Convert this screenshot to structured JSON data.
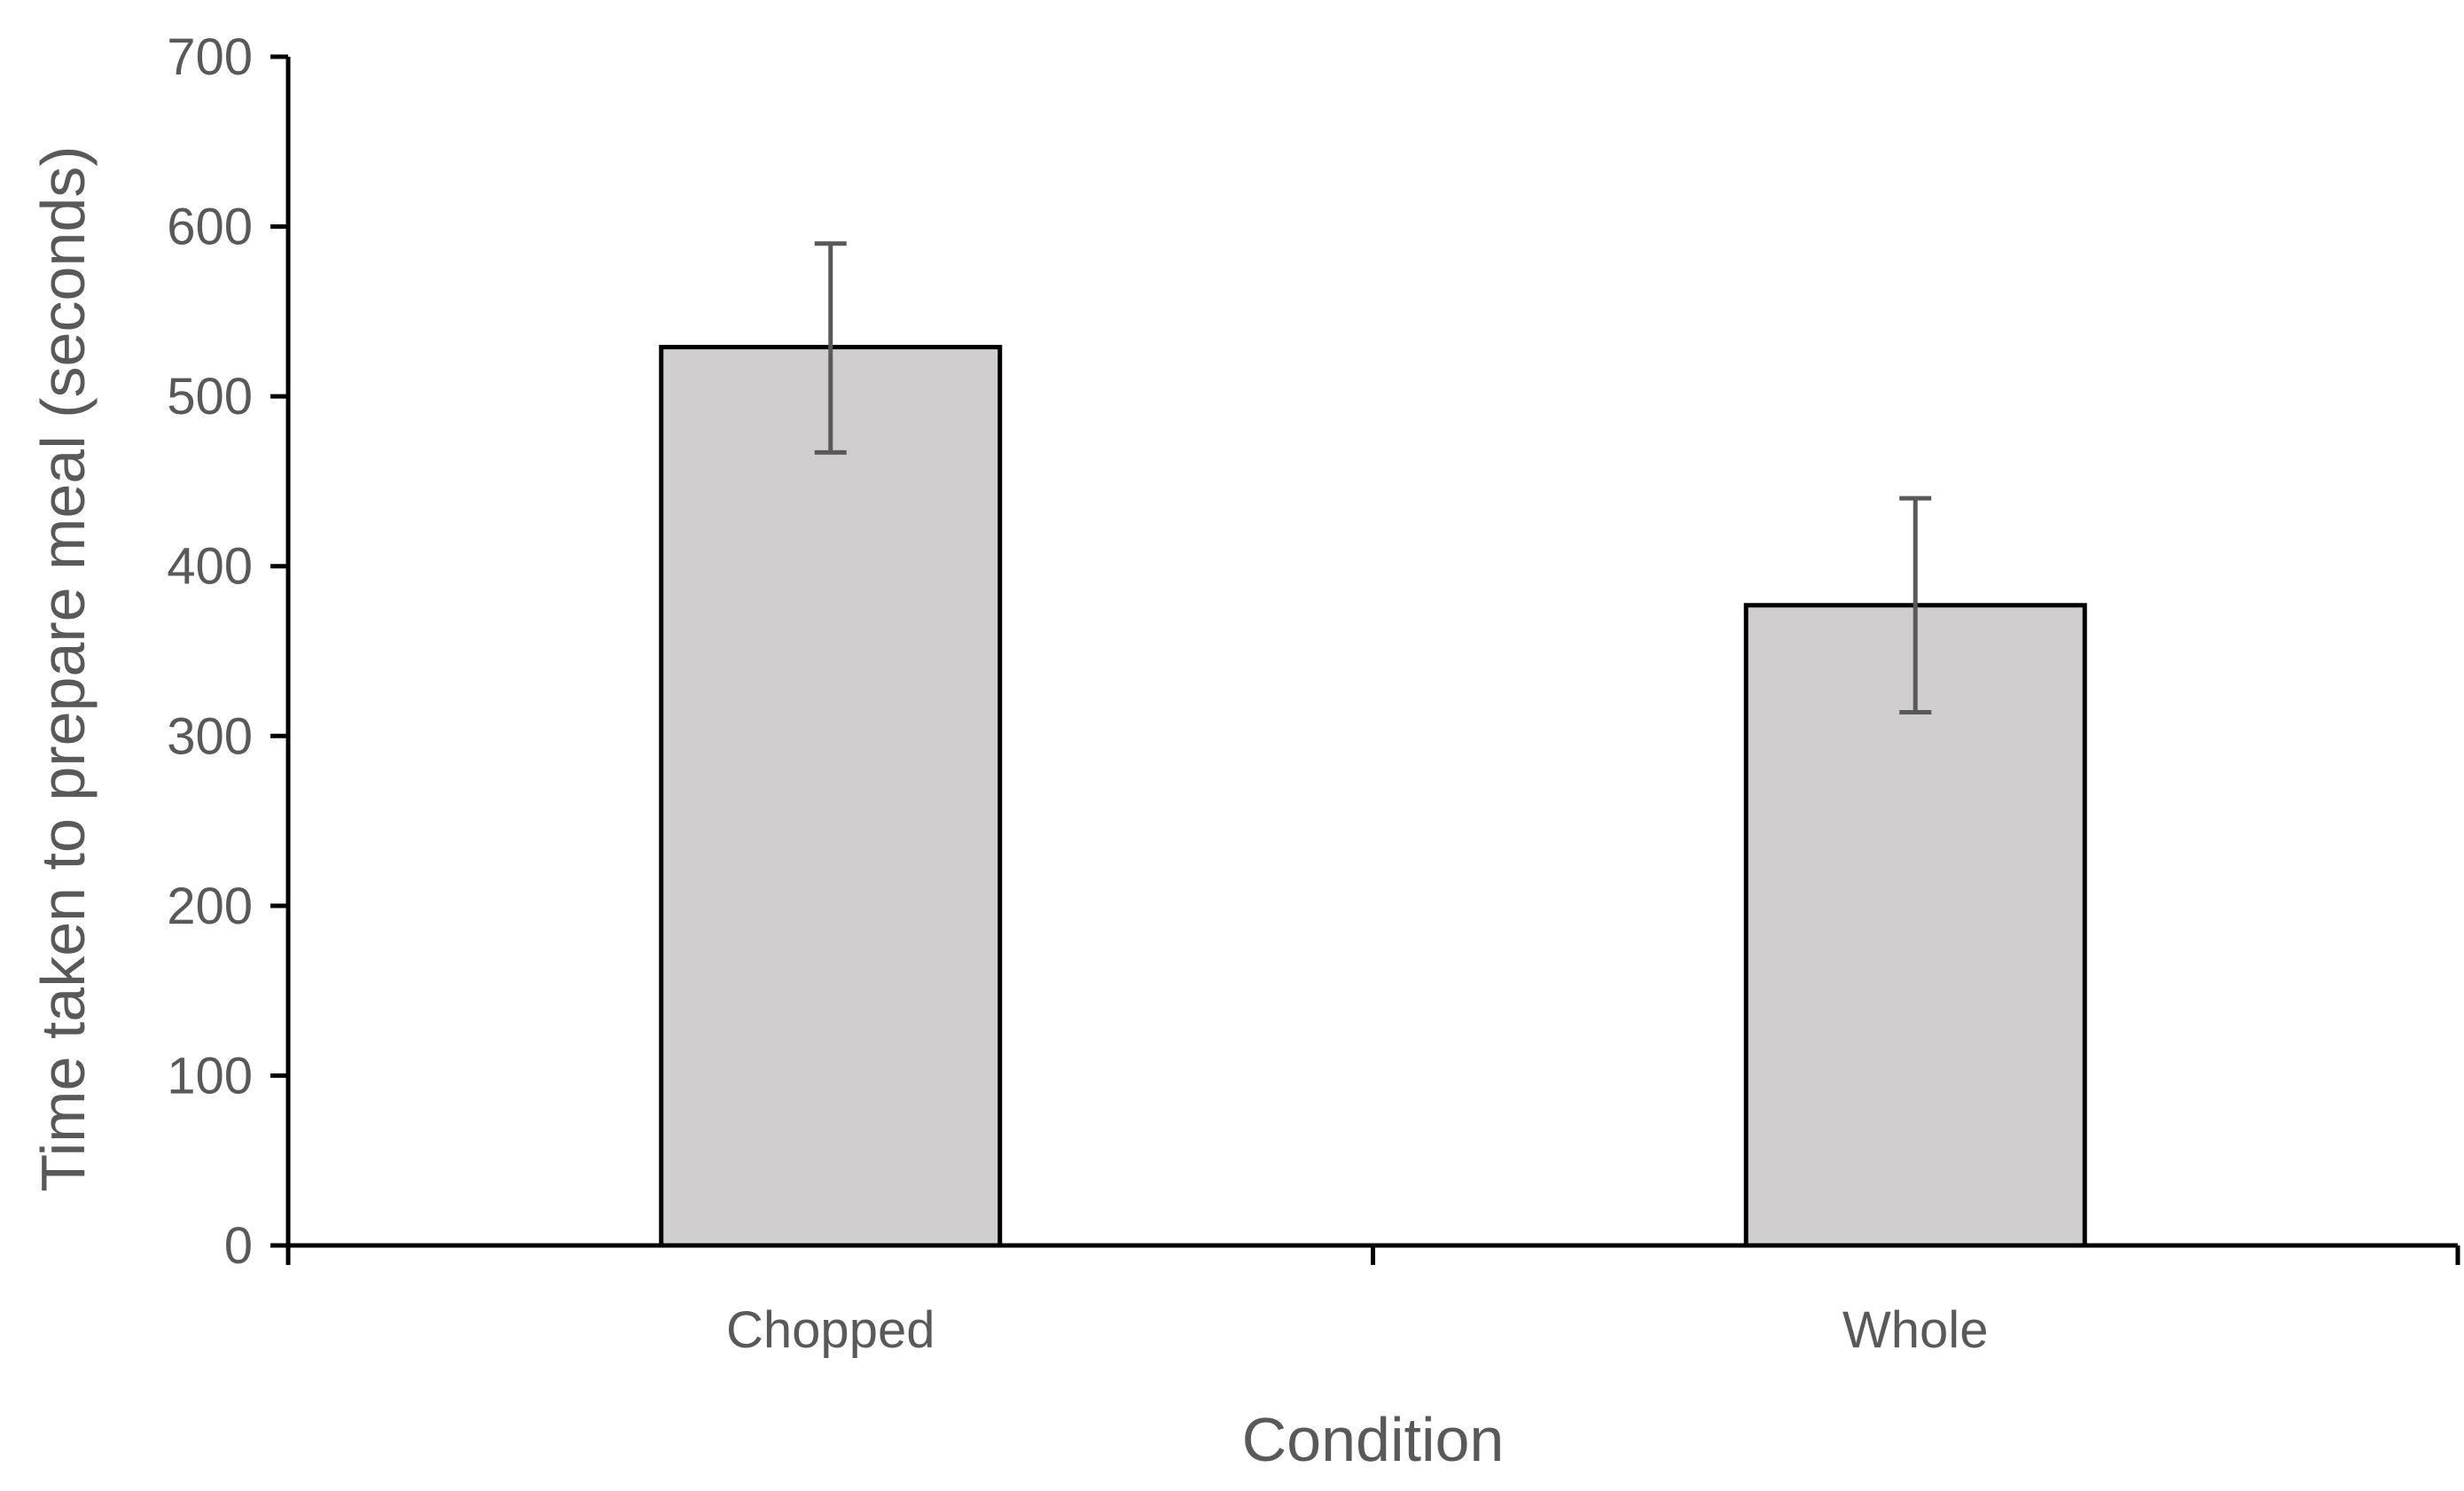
{
  "chart_data": {
    "type": "bar",
    "title": "",
    "xlabel": "Condition",
    "ylabel": "Time taken to prepare meal (seconds)",
    "categories": [
      "Chopped",
      "Whole"
    ],
    "values": [
      529,
      377
    ],
    "error_upper": [
      590,
      440
    ],
    "error_lower": [
      467,
      314
    ],
    "ylim": [
      0,
      700
    ],
    "yticks": [
      0,
      100,
      200,
      300,
      400,
      500,
      600,
      700
    ],
    "grid": false,
    "legend": "none"
  },
  "colors": {
    "bar_fill": "#d0cecf",
    "bar_stroke": "#000000",
    "axis": "#000000",
    "error_bar": "#595959",
    "text": "#595959"
  }
}
